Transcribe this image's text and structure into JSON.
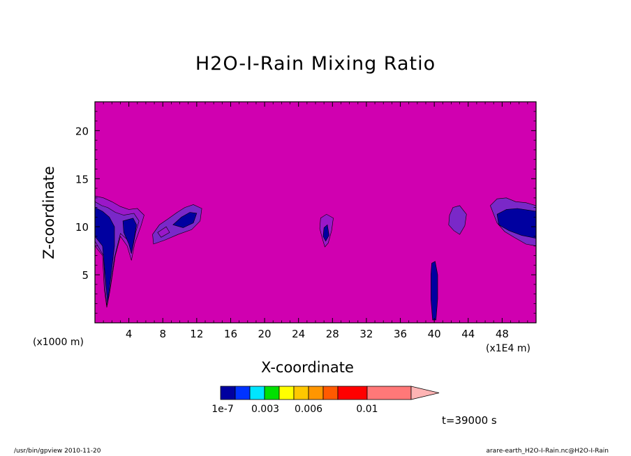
{
  "colors": {
    "background_fill": "#d000b0",
    "levels_fill": [
      "#0000a0",
      "#0033ff",
      "#00e5ff",
      "#00e000",
      "#ffff00",
      "#ffc800",
      "#ff9600",
      "#ff5a00",
      "#ff0000",
      "#ff7878",
      "#ffb4b4"
    ],
    "contour_fill_low": "#0000a0",
    "contour_fill_mid": "#7a28c8",
    "contour_fill_edge": "#9a18c8"
  },
  "chart_data": {
    "type": "contour",
    "title": "H2O-I-Rain Mixing Ratio",
    "xlabel": "X-coordinate",
    "ylabel": "Z-coordinate",
    "x_unit_left": "(x1000 m)",
    "x_unit_right": "(x1E4 m)",
    "xlim": [
      0,
      52
    ],
    "ylim": [
      0,
      23
    ],
    "x_ticks": [
      4,
      8,
      12,
      16,
      20,
      24,
      28,
      32,
      36,
      40,
      44,
      48
    ],
    "y_ticks": [
      5,
      10,
      15,
      20
    ],
    "features": [
      {
        "name": "left-edge-cell",
        "x_center": 1.5,
        "z_center": 9.5,
        "level": "high"
      },
      {
        "name": "left-column-cell",
        "x_center": 4.0,
        "z_center": 9.5,
        "level": "high"
      },
      {
        "name": "cell-x10",
        "x_center": 9.5,
        "z_center": 10.2,
        "level": "mid"
      },
      {
        "name": "cell-x27",
        "x_center": 27.3,
        "z_center": 9.5,
        "level": "high"
      },
      {
        "name": "column-x40",
        "x_center": 40.0,
        "z_center": 2.5,
        "level": "high"
      },
      {
        "name": "cell-x43",
        "x_center": 42.8,
        "z_center": 10.5,
        "level": "mid"
      },
      {
        "name": "right-edge-cell",
        "x_center": 49.5,
        "z_center": 10.0,
        "level": "high"
      }
    ],
    "colorbar": {
      "levels_count": 11,
      "tick_labels": [
        "1e-7",
        "0.003",
        "0.006",
        "0.01"
      ]
    },
    "time_label": "t=39000 s"
  },
  "footer": {
    "left": "/usr/bin/gpview   2010-11-20",
    "right": "arare-earth_H2O-I-Rain.nc@H2O-I-Rain"
  }
}
